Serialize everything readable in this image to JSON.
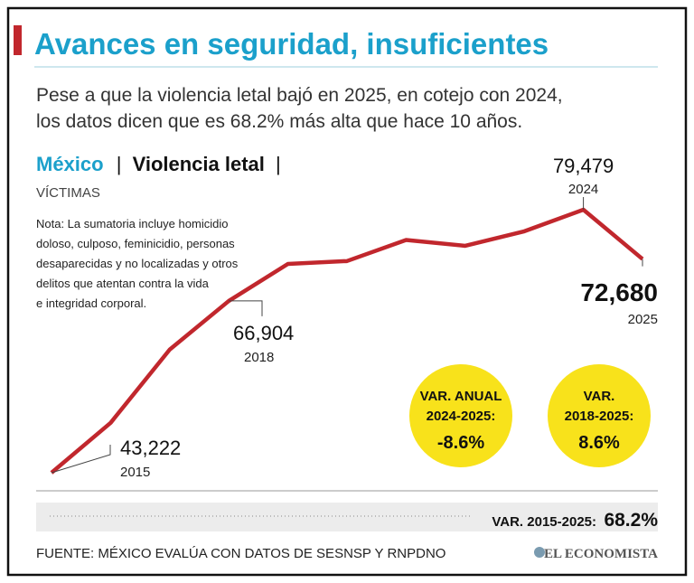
{
  "chart_data": {
    "type": "line",
    "title": "Avances en seguridad, insuficientes",
    "subtitle": [
      "Pese a que la violencia letal bajó en 2025, en cotejo con 2024,",
      "los datos dicen que es 68.2% más alta que hace 10 años."
    ],
    "heading": {
      "place": "México",
      "separator": "|",
      "topic": "Violencia letal"
    },
    "unit_label": "VÍCTIMAS",
    "note": [
      "Nota: La sumatoria incluye homicidio",
      "doloso, culposo, feminicidio, personas",
      "desaparecidas y no localizadas y otros",
      "delitos que atentan contra la vida",
      "e integridad corporal."
    ],
    "categories": [
      "2015",
      null,
      null,
      "2018",
      null,
      null,
      null,
      null,
      null,
      "2024",
      "2025"
    ],
    "series": [
      {
        "color": "#c1272d",
        "values": [
          43222,
          50100,
          60200,
          66904,
          72000,
          72400,
          75300,
          74500,
          76500,
          79479,
          72680
        ],
        "value_labels": [
          "43,222",
          null,
          null,
          "66,904",
          null,
          null,
          null,
          null,
          null,
          "79,479",
          "72,680"
        ]
      }
    ],
    "annotations": [
      {
        "lines": [
          "VAR. ANUAL",
          "2024-2025:"
        ],
        "value": "-8.6%"
      },
      {
        "lines": [
          "VAR.",
          "2018-2025:"
        ],
        "value": "8.6%"
      }
    ],
    "summary": {
      "label": "VAR. 2015-2025:",
      "value": "68.2%"
    },
    "source": "FUENTE: MÉXICO EVALÚA CON DATOS DE SESNSP Y RNPDNO",
    "brand": "EL ECONOMISTA"
  }
}
